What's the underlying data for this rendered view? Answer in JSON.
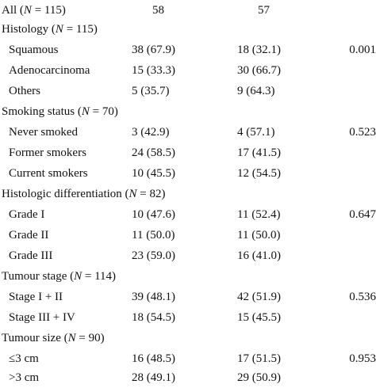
{
  "all_row": {
    "label_pre": "All (",
    "label_var": "N",
    "label_post": " = 115)",
    "group1": "58",
    "group2": "57"
  },
  "sections": [
    {
      "heading": {
        "pre": "Histology (",
        "var": "N",
        "post": " = 115)"
      },
      "rows": [
        {
          "label": "Squamous",
          "group1": "38 (67.9)",
          "group2": "18 (32.1)",
          "p": "0.001"
        },
        {
          "label": "Adenocarcinoma",
          "group1": "15 (33.3)",
          "group2": "30 (66.7)",
          "p": ""
        },
        {
          "label": "Others",
          "group1": "5 (35.7)",
          "group2": "9 (64.3)",
          "p": ""
        }
      ]
    },
    {
      "heading": {
        "pre": "Smoking status (",
        "var": "N",
        "post": " = 70)"
      },
      "rows": [
        {
          "label": "Never smoked",
          "group1": "3 (42.9)",
          "group2": "4 (57.1)",
          "p": "0.523"
        },
        {
          "label": "Former smokers",
          "group1": "24 (58.5)",
          "group2": "17 (41.5)",
          "p": ""
        },
        {
          "label": "Current smokers",
          "group1": "10 (45.5)",
          "group2": "12 (54.5)",
          "p": ""
        }
      ]
    },
    {
      "heading": {
        "pre": "Histologic differentiation (",
        "var": "N",
        "post": " = 82)"
      },
      "rows": [
        {
          "label": "Grade I",
          "group1": "10 (47.6)",
          "group2": "11 (52.4)",
          "p": "0.647"
        },
        {
          "label": "Grade II",
          "group1": "11 (50.0)",
          "group2": "11 (50.0)",
          "p": ""
        },
        {
          "label": "Grade III",
          "group1": "23 (59.0)",
          "group2": "16 (41.0)",
          "p": ""
        }
      ]
    },
    {
      "heading": {
        "pre": "Tumour stage (",
        "var": "N",
        "post": " = 114)"
      },
      "rows": [
        {
          "label": "Stage I + II",
          "group1": "39 (48.1)",
          "group2": "42 (51.9)",
          "p": "0.536"
        },
        {
          "label": "Stage III + IV",
          "group1": "18 (54.5)",
          "group2": "15 (45.5)",
          "p": ""
        }
      ]
    },
    {
      "heading": {
        "pre": "Tumour size (",
        "var": "N",
        "post": " = 90)"
      },
      "rows": [
        {
          "label": "≤3 cm",
          "group1": "16 (48.5)",
          "group2": "17 (51.5)",
          "p": "0.953"
        },
        {
          "label": ">3 cm",
          "group1": "28 (49.1)",
          "group2": "29 (50.9)",
          "p": ""
        }
      ]
    }
  ]
}
